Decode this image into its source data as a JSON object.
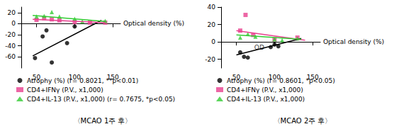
{
  "chart_data": [
    {
      "type": "scatter",
      "title": "〈MCAO 1주 후〉",
      "x_label": "Optical density (%)",
      "xlim": [
        30,
        160
      ],
      "xticks": [
        50,
        100,
        150
      ],
      "ylim": [
        -80,
        30
      ],
      "yticks": [
        -60,
        -40,
        -20,
        0,
        20
      ],
      "grid": false,
      "series": [
        {
          "name": "Atrophy (%) (r= 0.8021, **p<0.01)",
          "color": "#000000",
          "marker": "circle",
          "x": [
            48,
            58,
            63,
            70,
            90,
            100
          ],
          "values": [
            -62,
            -23,
            -12,
            -70,
            -35,
            -5
          ],
          "fit": {
            "x": [
              45,
              135
            ],
            "values": [
              -58,
              6
            ]
          }
        },
        {
          "name": "CD4+IFNγ (P.V., x1,000)",
          "color": "#e8408f",
          "marker": "square",
          "x": [
            50,
            60,
            70,
            80,
            100,
            120,
            140
          ],
          "values": [
            7,
            10,
            8,
            6,
            3,
            2,
            2
          ],
          "fit": {
            "x": [
              45,
              140
            ],
            "values": [
              8,
              2
            ]
          }
        },
        {
          "name": "CD4+IL-13 (P.V., x1,000) (r= 0.7675, *p<0.05)",
          "color": "#33cc33",
          "marker": "triangle",
          "x": [
            50,
            60,
            70,
            80,
            100,
            110,
            140
          ],
          "values": [
            13,
            14,
            21,
            13,
            9,
            4,
            5
          ],
          "fit": {
            "x": [
              45,
              140
            ],
            "values": [
              15,
              4
            ]
          }
        }
      ]
    },
    {
      "type": "scatter",
      "title": "〈MCAO 2주 후〉",
      "x_label": "Optical density (%)",
      "xlim": [
        30,
        160
      ],
      "xticks": [
        50,
        100,
        150
      ],
      "ylim": [
        -30,
        40
      ],
      "yticks": [
        -20,
        0,
        20,
        40
      ],
      "grid": false,
      "series": [
        {
          "name": "Atrophy (%) (r= 0.8601, *p<0.05)",
          "color": "#000000",
          "marker": "circle",
          "x": [
            55,
            60,
            65,
            95,
            100,
            105
          ],
          "values": [
            -12,
            -17,
            -18,
            -6,
            -3,
            -5
          ],
          "fit": {
            "x": [
              50,
              135
            ],
            "values": [
              -15,
              4
            ]
          }
        },
        {
          "name": "CD4+IFNγ (P.V., x1,000)",
          "color": "#e8408f",
          "marker": "square",
          "x": [
            55,
            62,
            72,
            100,
            130
          ],
          "values": [
            13,
            31,
            8,
            3,
            5
          ],
          "fit": {
            "x": [
              50,
              140
            ],
            "values": [
              13,
              2
            ]
          }
        },
        {
          "name": "CD4+IL-13 (P.V., x1,000)",
          "color": "#33cc33",
          "marker": "triangle",
          "x": [
            55,
            65,
            75,
            100,
            110,
            130
          ],
          "values": [
            5,
            9,
            6,
            3,
            2,
            4
          ],
          "fit": {
            "x": [
              50,
              135
            ],
            "values": [
              8,
              3
            ]
          }
        }
      ],
      "annotations": [
        {
          "text": "OD",
          "x": 80,
          "y": -6
        }
      ]
    }
  ]
}
